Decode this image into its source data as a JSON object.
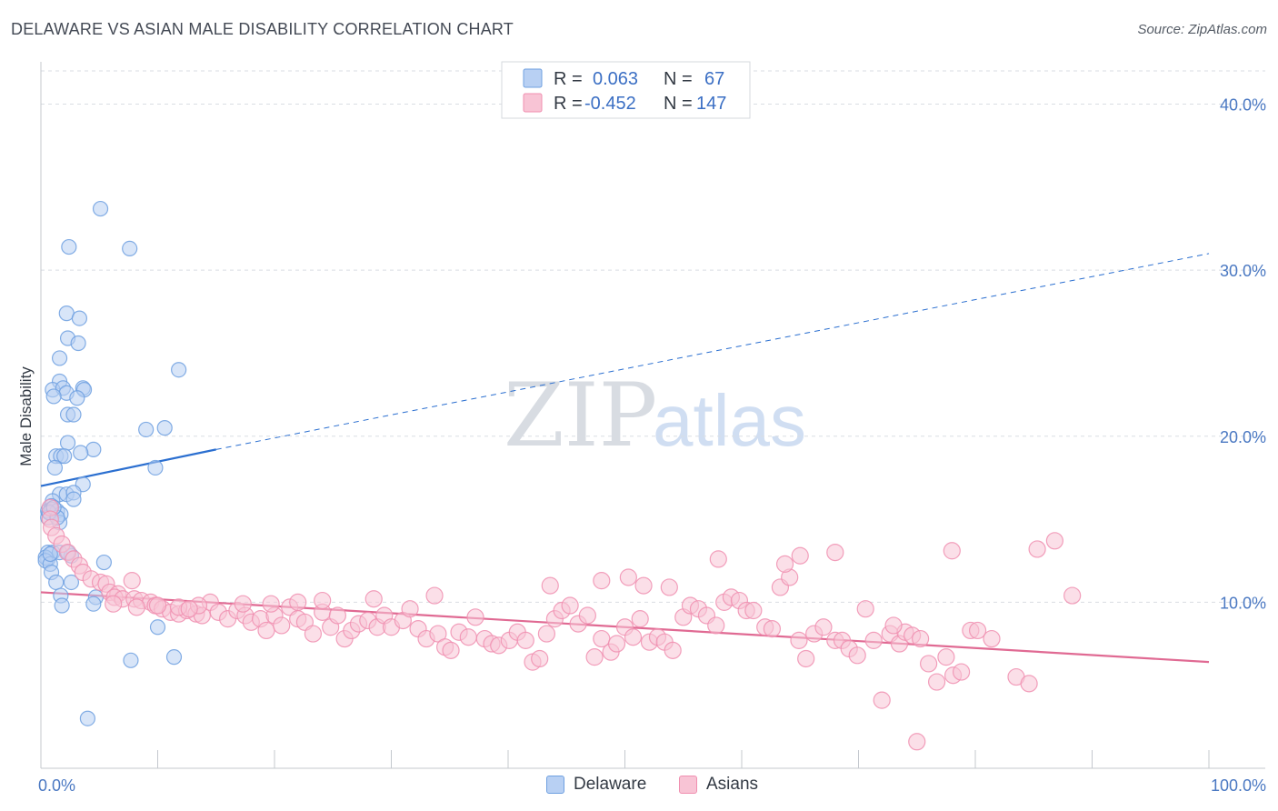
{
  "title": "DELAWARE VS ASIAN MALE DISABILITY CORRELATION CHART",
  "source": "Source: ZipAtlas.com",
  "watermark": {
    "zip": "ZIP",
    "atlas": "atlas"
  },
  "colors": {
    "delaware": "#6fa0e0",
    "delaware_fill": "#b8d0f3",
    "delaware_line": "#2b6fd0",
    "asians": "#f08fb0",
    "asians_fill": "#f8c4d5",
    "asians_line": "#e06a93",
    "tick_text": "#4a78c2",
    "grid": "#d9dde3"
  },
  "chart_data": {
    "type": "scatter",
    "title": "DELAWARE VS ASIAN MALE DISABILITY CORRELATION CHART",
    "xlabel": "",
    "ylabel": "Male Disability",
    "xlim": [
      0,
      100
    ],
    "ylim": [
      0,
      42
    ],
    "x_tick_labels": [
      "0.0%",
      "100.0%"
    ],
    "y_ticks": [
      10,
      20,
      30,
      40
    ],
    "y_tick_labels": [
      "10.0%",
      "20.0%",
      "30.0%",
      "40.0%"
    ],
    "grid": true,
    "legend_position": "top-center",
    "legend": [
      {
        "r_label": "R =",
        "r_value": "0.063",
        "n_label": "N =",
        "n_value": "67"
      },
      {
        "r_label": "R =",
        "r_value": "-0.452",
        "n_label": "N =",
        "n_value": "147"
      }
    ],
    "series": [
      {
        "name": "Delaware",
        "trend": {
          "x0": 0,
          "y0": 17.0,
          "x1": 15,
          "y1": 19.2,
          "dash_to_x": 100,
          "dash_to_y": 31.0
        },
        "points": [
          [
            5.1,
            33.7
          ],
          [
            2.4,
            31.4
          ],
          [
            7.6,
            31.3
          ],
          [
            2.2,
            27.4
          ],
          [
            3.3,
            27.1
          ],
          [
            2.3,
            25.9
          ],
          [
            3.2,
            25.6
          ],
          [
            1.6,
            24.7
          ],
          [
            11.8,
            24.0
          ],
          [
            1.6,
            23.3
          ],
          [
            1.0,
            22.8
          ],
          [
            1.9,
            22.9
          ],
          [
            2.2,
            22.6
          ],
          [
            3.6,
            22.9
          ],
          [
            3.7,
            22.8
          ],
          [
            1.1,
            22.4
          ],
          [
            3.1,
            22.3
          ],
          [
            2.3,
            21.3
          ],
          [
            2.8,
            21.3
          ],
          [
            9.0,
            20.4
          ],
          [
            10.6,
            20.5
          ],
          [
            2.3,
            19.6
          ],
          [
            4.5,
            19.2
          ],
          [
            3.4,
            19.0
          ],
          [
            1.3,
            18.8
          ],
          [
            1.7,
            18.8
          ],
          [
            2.0,
            18.8
          ],
          [
            1.2,
            18.1
          ],
          [
            9.8,
            18.1
          ],
          [
            3.6,
            17.1
          ],
          [
            1.6,
            16.5
          ],
          [
            2.2,
            16.5
          ],
          [
            2.8,
            16.6
          ],
          [
            2.8,
            16.2
          ],
          [
            1.0,
            16.1
          ],
          [
            0.9,
            15.8
          ],
          [
            0.6,
            15.5
          ],
          [
            0.9,
            15.6
          ],
          [
            1.4,
            15.5
          ],
          [
            1.7,
            15.3
          ],
          [
            0.6,
            15.1
          ],
          [
            1.6,
            14.8
          ],
          [
            0.6,
            13.0
          ],
          [
            0.6,
            12.6
          ],
          [
            1.0,
            13.0
          ],
          [
            1.6,
            13.0
          ],
          [
            2.6,
            12.8
          ],
          [
            0.4,
            12.7
          ],
          [
            0.4,
            12.5
          ],
          [
            0.8,
            12.3
          ],
          [
            5.4,
            12.4
          ],
          [
            0.9,
            11.8
          ],
          [
            1.3,
            11.2
          ],
          [
            2.6,
            11.2
          ],
          [
            1.7,
            10.4
          ],
          [
            4.7,
            10.3
          ],
          [
            4.5,
            9.9
          ],
          [
            1.8,
            9.8
          ],
          [
            0.8,
            12.9
          ],
          [
            0.7,
            15.4
          ],
          [
            1.4,
            15.1
          ],
          [
            1.1,
            15.7
          ],
          [
            2.3,
            13.0
          ],
          [
            10.0,
            8.5
          ],
          [
            7.7,
            6.5
          ],
          [
            11.4,
            6.7
          ],
          [
            4.0,
            3.0
          ]
        ]
      },
      {
        "name": "Asians",
        "trend": {
          "x0": 0,
          "y0": 10.6,
          "x1": 100,
          "y1": 6.4
        },
        "points": [
          [
            0.8,
            15.7
          ],
          [
            0.8,
            15.0
          ],
          [
            0.9,
            14.5
          ],
          [
            1.3,
            14.0
          ],
          [
            1.8,
            13.5
          ],
          [
            2.3,
            13.0
          ],
          [
            2.8,
            12.6
          ],
          [
            3.3,
            12.2
          ],
          [
            3.6,
            11.8
          ],
          [
            4.3,
            11.4
          ],
          [
            5.1,
            11.2
          ],
          [
            5.6,
            11.1
          ],
          [
            7.8,
            11.3
          ],
          [
            5.9,
            10.6
          ],
          [
            6.6,
            10.5
          ],
          [
            6.3,
            10.3
          ],
          [
            7.0,
            10.2
          ],
          [
            8.0,
            10.2
          ],
          [
            8.6,
            10.1
          ],
          [
            9.4,
            10.0
          ],
          [
            9.8,
            9.8
          ],
          [
            10.4,
            9.6
          ],
          [
            11.1,
            9.4
          ],
          [
            11.8,
            9.3
          ],
          [
            12.5,
            9.5
          ],
          [
            13.3,
            9.3
          ],
          [
            13.8,
            9.2
          ],
          [
            14.5,
            10.0
          ],
          [
            15.2,
            9.4
          ],
          [
            16.0,
            9.0
          ],
          [
            16.8,
            9.5
          ],
          [
            17.5,
            9.2
          ],
          [
            18.0,
            8.8
          ],
          [
            18.8,
            9.0
          ],
          [
            19.3,
            8.3
          ],
          [
            20.0,
            9.2
          ],
          [
            20.6,
            8.6
          ],
          [
            21.3,
            9.7
          ],
          [
            22.0,
            9.0
          ],
          [
            22.6,
            8.8
          ],
          [
            23.3,
            8.1
          ],
          [
            24.1,
            9.4
          ],
          [
            24.8,
            8.5
          ],
          [
            25.4,
            9.2
          ],
          [
            26.0,
            7.8
          ],
          [
            26.6,
            8.3
          ],
          [
            27.2,
            8.7
          ],
          [
            28.0,
            8.9
          ],
          [
            28.8,
            8.5
          ],
          [
            29.4,
            9.2
          ],
          [
            30.0,
            8.5
          ],
          [
            31.0,
            8.9
          ],
          [
            31.6,
            9.6
          ],
          [
            32.3,
            8.4
          ],
          [
            33.0,
            7.8
          ],
          [
            34.0,
            8.1
          ],
          [
            34.6,
            7.3
          ],
          [
            35.1,
            7.1
          ],
          [
            35.8,
            8.2
          ],
          [
            36.6,
            7.9
          ],
          [
            37.2,
            9.1
          ],
          [
            38.0,
            7.8
          ],
          [
            38.6,
            7.5
          ],
          [
            39.2,
            7.4
          ],
          [
            40.1,
            7.7
          ],
          [
            40.8,
            8.2
          ],
          [
            41.5,
            7.7
          ],
          [
            42.1,
            6.4
          ],
          [
            42.7,
            6.6
          ],
          [
            43.3,
            8.1
          ],
          [
            44.0,
            9.0
          ],
          [
            44.6,
            9.5
          ],
          [
            45.3,
            9.8
          ],
          [
            46.0,
            8.7
          ],
          [
            46.8,
            9.2
          ],
          [
            47.4,
            6.7
          ],
          [
            48.0,
            7.8
          ],
          [
            48.8,
            7.0
          ],
          [
            49.3,
            7.5
          ],
          [
            50.0,
            8.5
          ],
          [
            50.7,
            7.9
          ],
          [
            51.3,
            9.0
          ],
          [
            52.1,
            7.6
          ],
          [
            52.8,
            7.9
          ],
          [
            53.4,
            7.6
          ],
          [
            54.1,
            7.1
          ],
          [
            55.0,
            9.1
          ],
          [
            55.6,
            9.8
          ],
          [
            56.3,
            9.6
          ],
          [
            57.0,
            9.2
          ],
          [
            57.8,
            8.6
          ],
          [
            58.5,
            10.0
          ],
          [
            59.1,
            10.3
          ],
          [
            59.8,
            10.1
          ],
          [
            60.4,
            9.5
          ],
          [
            61.0,
            9.5
          ],
          [
            62.0,
            8.5
          ],
          [
            62.6,
            8.4
          ],
          [
            63.3,
            10.9
          ],
          [
            64.1,
            11.5
          ],
          [
            64.9,
            7.7
          ],
          [
            65.5,
            6.6
          ],
          [
            66.2,
            8.1
          ],
          [
            67.0,
            8.5
          ],
          [
            68.0,
            7.7
          ],
          [
            68.6,
            7.7
          ],
          [
            69.2,
            7.2
          ],
          [
            69.9,
            6.8
          ],
          [
            70.6,
            9.6
          ],
          [
            71.3,
            7.7
          ],
          [
            72.0,
            4.1
          ],
          [
            72.7,
            8.1
          ],
          [
            73.5,
            7.5
          ],
          [
            74.0,
            8.2
          ],
          [
            74.6,
            8.0
          ],
          [
            75.3,
            7.8
          ],
          [
            76.0,
            6.3
          ],
          [
            76.7,
            5.2
          ],
          [
            77.5,
            6.7
          ],
          [
            78.1,
            5.6
          ],
          [
            78.8,
            5.8
          ],
          [
            79.6,
            8.3
          ],
          [
            80.2,
            8.3
          ],
          [
            81.4,
            7.8
          ],
          [
            83.5,
            5.5
          ],
          [
            84.6,
            5.1
          ],
          [
            85.3,
            13.2
          ],
          [
            88.3,
            10.4
          ],
          [
            65.0,
            12.8
          ],
          [
            63.7,
            12.3
          ],
          [
            58.0,
            12.6
          ],
          [
            53.8,
            10.9
          ],
          [
            51.6,
            11.0
          ],
          [
            48.0,
            11.3
          ],
          [
            43.6,
            11.0
          ],
          [
            33.7,
            10.4
          ],
          [
            28.5,
            10.2
          ],
          [
            24.1,
            10.1
          ],
          [
            22.0,
            10.0
          ],
          [
            19.7,
            9.9
          ],
          [
            17.3,
            9.9
          ],
          [
            13.5,
            9.8
          ],
          [
            11.8,
            9.7
          ],
          [
            10.0,
            9.8
          ],
          [
            8.2,
            9.7
          ],
          [
            6.2,
            9.9
          ],
          [
            50.3,
            11.5
          ],
          [
            68.0,
            13.0
          ],
          [
            78.0,
            13.1
          ],
          [
            86.8,
            13.7
          ],
          [
            73.0,
            8.6
          ],
          [
            75.0,
            1.6
          ],
          [
            12.7,
            9.6
          ]
        ]
      }
    ]
  },
  "bottom_legend": [
    {
      "label": "Delaware"
    },
    {
      "label": "Asians"
    }
  ]
}
